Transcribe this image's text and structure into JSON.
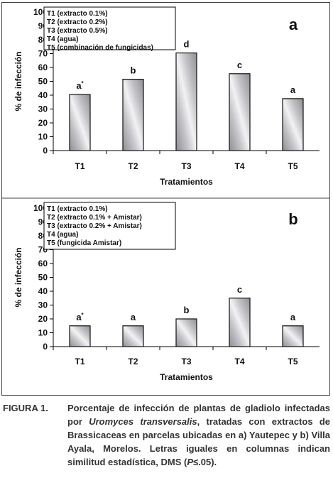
{
  "figure": {
    "caption_label": "FIGURA 1.",
    "caption_pre": "Porcentaje de infección de plantas de gladiolo infectadas por ",
    "caption_species": "Uromyces transversalis",
    "caption_mid": ", tratadas con extractos de Brassicaceas en parcelas ubicadas en a) Yautepec y b) Villa Ayala, Morelos. Letras iguales en columnas indican similitud estadística, DMS (",
    "caption_p": "P",
    "caption_end": "≤.05)."
  },
  "chart_data": [
    {
      "type": "bar",
      "panel_label": "a",
      "categories": [
        "T1",
        "T2",
        "T3",
        "T4",
        "T5"
      ],
      "values": [
        40.5,
        51.5,
        70.5,
        55.5,
        37.5
      ],
      "significance_letters": [
        "a",
        "b",
        "d",
        "c",
        "a"
      ],
      "first_letter_mark": "*",
      "xlabel": "Tratamientos",
      "ylabel": "% de infección",
      "ylim": [
        0,
        100
      ],
      "yticks": [
        0,
        10,
        20,
        30,
        40,
        50,
        60,
        70,
        80,
        90,
        100
      ],
      "grid": false,
      "legend_placement": "top-left",
      "legend": [
        "T1 (extracto 0.1%)",
        "T2 (extracto 0.2%)",
        "T3 (extracto 0.5%)",
        "T4 (agua)",
        "T5 (combinación de fungicidas)"
      ],
      "bar_color": "#a9a9ad"
    },
    {
      "type": "bar",
      "panel_label": "b",
      "categories": [
        "T1",
        "T2",
        "T3",
        "T4",
        "T5"
      ],
      "values": [
        15,
        15,
        20,
        35,
        15
      ],
      "significance_letters": [
        "a",
        "a",
        "b",
        "c",
        "a"
      ],
      "first_letter_mark": "*",
      "xlabel": "Tratamientos",
      "ylabel": "% de infección",
      "ylim": [
        0,
        100
      ],
      "yticks": [
        0,
        10,
        20,
        30,
        40,
        50,
        60,
        70,
        80,
        90,
        100
      ],
      "grid": false,
      "legend_placement": "top-left",
      "legend": [
        "T1 (extracto 0.1%)",
        "T2 (extracto 0.1% + Amistar)",
        "T3 (extracto 0.2% + Amistar)",
        "T4 (agua)",
        "T5 (fungicida Amistar)"
      ],
      "bar_color": "#a9a9ad"
    }
  ]
}
